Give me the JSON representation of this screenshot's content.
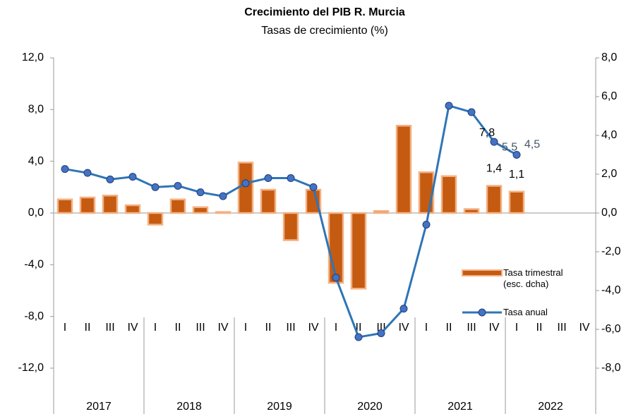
{
  "chart_data": {
    "type": "combo",
    "title": "Crecimiento del PIB R. Murcia",
    "subtitle": "Tasas de crecimiento (%)",
    "categories": [
      "I",
      "II",
      "III",
      "IV",
      "I",
      "II",
      "III",
      "IV",
      "I",
      "II",
      "III",
      "IV",
      "I",
      "II",
      "III",
      "IV",
      "I",
      "II",
      "III",
      "IV",
      "I",
      "II",
      "III",
      "IV"
    ],
    "years": [
      "2017",
      "2018",
      "2019",
      "2020",
      "2021",
      "2022"
    ],
    "ylim": [
      -12,
      12
    ],
    "yticks": [
      {
        "value": -12,
        "label": "-12,0"
      },
      {
        "value": -8,
        "label": "-8,0"
      },
      {
        "value": -4,
        "label": "-4,0"
      },
      {
        "value": 0,
        "label": "0,0"
      },
      {
        "value": 4,
        "label": "4,0"
      },
      {
        "value": 8,
        "label": "8,0"
      },
      {
        "value": 12,
        "label": "12,0"
      }
    ],
    "y2lim": [
      -8,
      8
    ],
    "y2ticks": [
      {
        "value": -8,
        "label": "-8,0"
      },
      {
        "value": -6,
        "label": "-6,0"
      },
      {
        "value": -4,
        "label": "-4,0"
      },
      {
        "value": -2,
        "label": "-2,0"
      },
      {
        "value": 0,
        "label": "0,0"
      },
      {
        "value": 2,
        "label": "2,0"
      },
      {
        "value": 4,
        "label": "4,0"
      },
      {
        "value": 6,
        "label": "6,0"
      },
      {
        "value": 8,
        "label": "8,0"
      }
    ],
    "series": [
      {
        "name": "Tasa trimestral (esc. dcha)",
        "type": "bar",
        "axis": "y2",
        "color": "#c55a11",
        "values": [
          0.7,
          0.8,
          0.9,
          0.4,
          -0.6,
          0.7,
          0.3,
          0.05,
          2.6,
          1.2,
          -1.4,
          1.2,
          -3.6,
          -3.9,
          0.1,
          4.5,
          2.1,
          1.9,
          0.2,
          1.4,
          1.1,
          null,
          null,
          null
        ],
        "value_labels": [
          null,
          null,
          null,
          null,
          null,
          null,
          null,
          null,
          null,
          null,
          null,
          null,
          null,
          null,
          null,
          null,
          null,
          null,
          null,
          "1,4",
          "1,1",
          null,
          null,
          null
        ]
      },
      {
        "name": "Tasa anual",
        "type": "line",
        "axis": "y",
        "color": "#2e75b6",
        "values": [
          3.4,
          3.1,
          2.6,
          2.8,
          2.0,
          2.1,
          1.6,
          1.3,
          2.3,
          2.7,
          2.7,
          2.0,
          -5.0,
          -9.6,
          -9.3,
          -7.4,
          -0.9,
          8.3,
          7.8,
          5.5,
          4.5,
          null,
          null,
          null
        ],
        "value_labels": [
          null,
          null,
          null,
          null,
          null,
          null,
          null,
          null,
          null,
          null,
          null,
          null,
          null,
          null,
          null,
          null,
          null,
          null,
          "7,8",
          "5,5",
          "4,5",
          null,
          null,
          null
        ]
      }
    ]
  }
}
